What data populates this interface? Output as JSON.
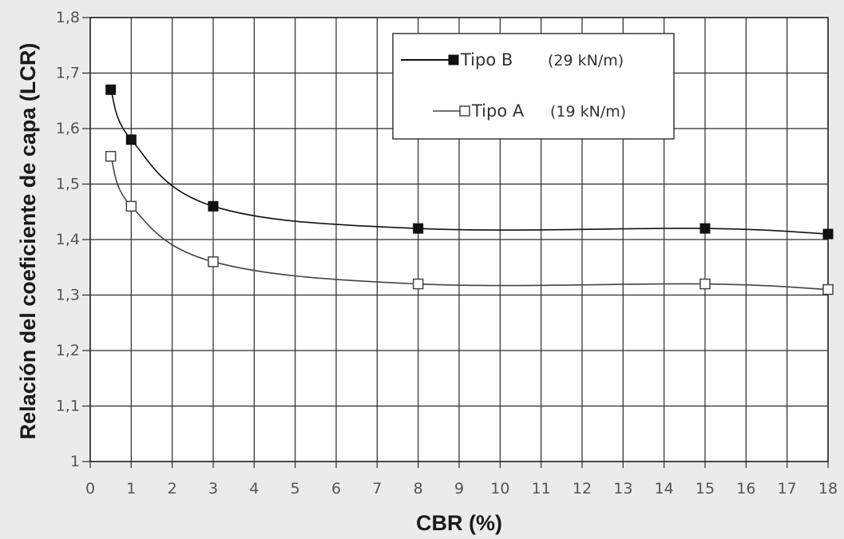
{
  "chart_data": {
    "type": "line",
    "xlabel": "CBR (%)",
    "ylabel": "Relación del coeficiente de capa (LCR)",
    "xlim": [
      0,
      18
    ],
    "ylim": [
      1,
      1.8
    ],
    "grid": true,
    "legend_position": "top-right",
    "x_ticks": [
      "0",
      "1",
      "2",
      "3",
      "4",
      "5",
      "6",
      "7",
      "8",
      "9",
      "10",
      "11",
      "12",
      "13",
      "14",
      "15",
      "16",
      "17",
      "18"
    ],
    "y_ticks": [
      "1",
      "1,1",
      "1,2",
      "1,3",
      "1,4",
      "1,5",
      "1,6",
      "1,7",
      "1,8"
    ],
    "series": [
      {
        "name": "Tipo B",
        "legend_unit": "(29 kN/m)",
        "marker": "filled-square",
        "color": "#111111",
        "points": [
          [
            0.5,
            1.67
          ],
          [
            1,
            1.58
          ],
          [
            3,
            1.46
          ],
          [
            8,
            1.42
          ],
          [
            15,
            1.42
          ],
          [
            18,
            1.41
          ]
        ]
      },
      {
        "name": "Tipo A",
        "legend_unit": "(19 kN/m)",
        "marker": "open-square",
        "color": "#444444",
        "points": [
          [
            0.5,
            1.55
          ],
          [
            1,
            1.46
          ],
          [
            3,
            1.36
          ],
          [
            8,
            1.32
          ],
          [
            15,
            1.32
          ],
          [
            18,
            1.31
          ]
        ]
      }
    ]
  }
}
